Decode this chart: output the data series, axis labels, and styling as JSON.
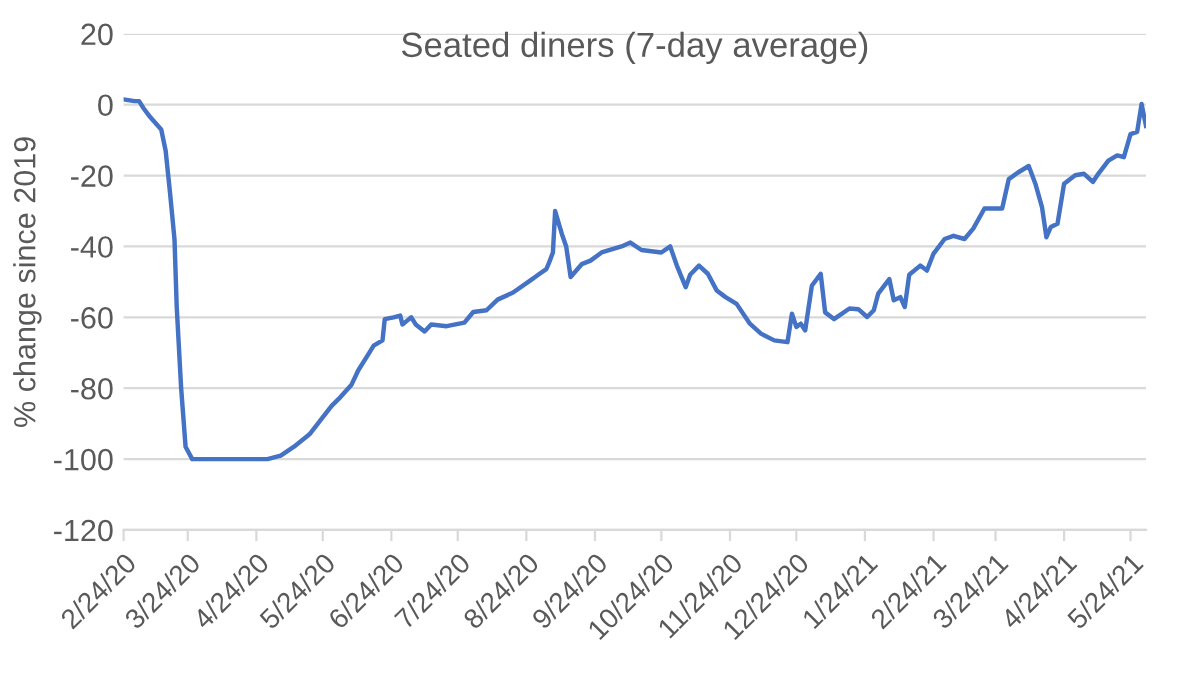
{
  "chart_data": {
    "type": "line",
    "title": "Seated diners (7-day average)",
    "ylabel": "% change since 2019",
    "x": [
      "2020-02-24",
      "2020-02-29",
      "2020-03-02",
      "2020-03-04",
      "2020-03-07",
      "2020-03-12",
      "2020-03-14",
      "2020-03-16",
      "2020-03-18",
      "2020-03-19",
      "2020-03-21",
      "2020-03-23",
      "2020-03-26",
      "2020-04-29",
      "2020-05-05",
      "2020-05-11",
      "2020-05-18",
      "2020-05-23",
      "2020-05-28",
      "2020-06-01",
      "2020-06-06",
      "2020-06-09",
      "2020-06-13",
      "2020-06-16",
      "2020-06-20",
      "2020-06-21",
      "2020-06-25",
      "2020-06-28",
      "2020-06-29",
      "2020-07-01",
      "2020-07-03",
      "2020-07-05",
      "2020-07-09",
      "2020-07-12",
      "2020-07-19",
      "2020-07-27",
      "2020-07-31",
      "2020-08-06",
      "2020-08-11",
      "2020-08-18",
      "2020-08-26",
      "2020-08-30",
      "2020-09-02",
      "2020-09-03",
      "2020-09-05",
      "2020-09-06",
      "2020-09-09",
      "2020-09-11",
      "2020-09-13",
      "2020-09-18",
      "2020-09-22",
      "2020-09-27",
      "2020-10-06",
      "2020-10-10",
      "2020-10-15",
      "2020-10-24",
      "2020-10-28",
      "2020-10-31",
      "2020-11-04",
      "2020-11-06",
      "2020-11-10",
      "2020-11-14",
      "2020-11-18",
      "2020-11-22",
      "2020-11-27",
      "2020-12-03",
      "2020-12-08",
      "2020-12-14",
      "2020-12-20",
      "2020-12-22",
      "2020-12-24",
      "2020-12-26",
      "2020-12-28",
      "2020-12-31",
      "2021-01-04",
      "2021-01-06",
      "2021-01-10",
      "2021-01-17",
      "2021-01-21",
      "2021-01-25",
      "2021-01-28",
      "2021-01-30",
      "2021-02-04",
      "2021-02-06",
      "2021-02-09",
      "2021-02-11",
      "2021-02-13",
      "2021-02-18",
      "2021-02-21",
      "2021-02-24",
      "2021-03-01",
      "2021-03-05",
      "2021-03-10",
      "2021-03-14",
      "2021-03-19",
      "2021-03-22",
      "2021-03-27",
      "2021-03-30",
      "2021-04-03",
      "2021-04-08",
      "2021-04-11",
      "2021-04-14",
      "2021-04-16",
      "2021-04-18",
      "2021-04-21",
      "2021-04-24",
      "2021-04-29",
      "2021-05-03",
      "2021-05-07",
      "2021-05-09",
      "2021-05-14",
      "2021-05-18",
      "2021-05-21",
      "2021-05-24",
      "2021-05-27",
      "2021-05-29",
      "2021-05-31"
    ],
    "series": [
      {
        "color": "#4472c4",
        "values": [
          1.5,
          1,
          1,
          -1,
          -3.5,
          -7,
          -13,
          -25,
          -38,
          -57,
          -80,
          -96.5,
          -100,
          -100,
          -99,
          -96.5,
          -93,
          -89,
          -85,
          -82.5,
          -79,
          -75,
          -71,
          -68,
          -66.5,
          -60.5,
          -60,
          -59.5,
          -62,
          -61,
          -60,
          -62,
          -64,
          -62,
          -62.5,
          -61.5,
          -58.5,
          -58,
          -55,
          -53,
          -49.5,
          -47.7,
          -46.4,
          -45,
          -41.7,
          -30,
          -36.4,
          -40,
          -48.6,
          -45,
          -44,
          -41.7,
          -40,
          -38.9,
          -41,
          -41.7,
          -40,
          -45.4,
          -51.5,
          -48,
          -45.4,
          -47.7,
          -52.4,
          -54.3,
          -56.2,
          -61.8,
          -64.6,
          -66.5,
          -67,
          -59,
          -62.7,
          -61.8,
          -63.7,
          -51.1,
          -47.7,
          -58.6,
          -60.5,
          -57.5,
          -57.7,
          -59.9,
          -58,
          -53.3,
          -49.2,
          -55.2,
          -54.3,
          -57.1,
          -48,
          -45.4,
          -46.8,
          -42,
          -37.9,
          -37,
          -37.9,
          -34.9,
          -29.3,
          -29.3,
          -29.3,
          -21,
          -19.2,
          -17.3,
          -22.3,
          -28.9,
          -37.4,
          -34.5,
          -33.6,
          -22.3,
          -19.9,
          -19.5,
          -21.8,
          -19.9,
          -15.8,
          -14.3,
          -14.8,
          -8.3,
          -7.7,
          0.2,
          -6
        ]
      }
    ],
    "xlim": [
      "2020-02-24",
      "2021-05-31"
    ],
    "xticks": [
      {
        "value": "2020-02-24",
        "label": "2/24/20"
      },
      {
        "value": "2020-03-24",
        "label": "3/24/20"
      },
      {
        "value": "2020-04-24",
        "label": "4/24/20"
      },
      {
        "value": "2020-05-24",
        "label": "5/24/20"
      },
      {
        "value": "2020-06-24",
        "label": "6/24/20"
      },
      {
        "value": "2020-07-24",
        "label": "7/24/20"
      },
      {
        "value": "2020-08-24",
        "label": "8/24/20"
      },
      {
        "value": "2020-09-24",
        "label": "9/24/20"
      },
      {
        "value": "2020-10-24",
        "label": "10/24/20"
      },
      {
        "value": "2020-11-24",
        "label": "11/24/20"
      },
      {
        "value": "2020-12-24",
        "label": "12/24/20"
      },
      {
        "value": "2021-01-24",
        "label": "1/24/21"
      },
      {
        "value": "2021-02-24",
        "label": "2/24/21"
      },
      {
        "value": "2021-03-24",
        "label": "3/24/21"
      },
      {
        "value": "2021-04-24",
        "label": "4/24/21"
      },
      {
        "value": "2021-05-24",
        "label": "5/24/21"
      }
    ],
    "ylim": [
      -120,
      20
    ],
    "yticks": [
      -120,
      -100,
      -80,
      -60,
      -40,
      -20,
      0,
      20
    ],
    "grid": "y",
    "legend": false,
    "marker": "none",
    "line_style": "solid"
  }
}
